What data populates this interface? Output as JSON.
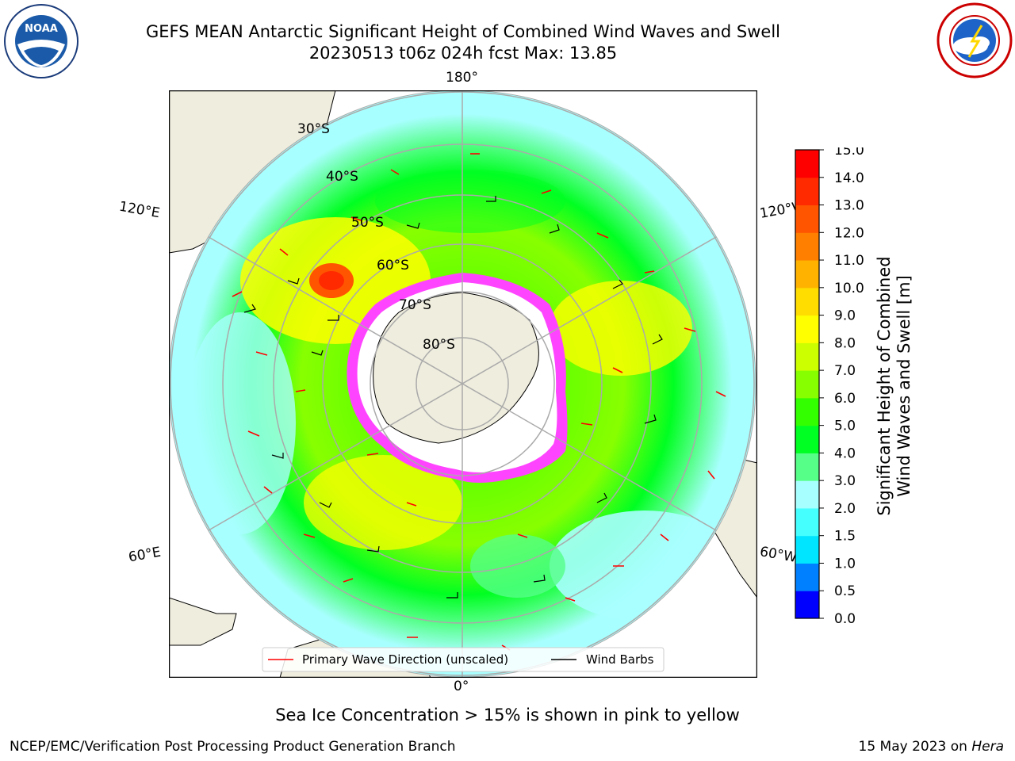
{
  "header": {
    "title_line1": "GEFS MEAN Antarctic Significant Height of Combined Wind Waves and Swell",
    "title_line2": "20230513 t06z 024h fcst   Max: 13.85"
  },
  "logos": {
    "left": {
      "text": "NOAA",
      "ring_text": "NATIONAL OCEANIC AND ATMOSPHERIC ADMINISTRATION · U.S. DEPARTMENT OF COMMERCE"
    },
    "right": {
      "ring_text": "NATIONAL WEATHER SERVICE"
    }
  },
  "map": {
    "projection": "south polar stereographic",
    "longitude_labels": {
      "top": "180°",
      "bottom": "0°",
      "upper_left": "120°E",
      "upper_right": "120°W",
      "lower_left": "60°E",
      "lower_right": "60°W"
    },
    "latitude_labels": [
      "30°S",
      "40°S",
      "50°S",
      "60°S",
      "70°S",
      "80°S"
    ],
    "legend": {
      "primary_wave": "Primary Wave Direction (unscaled)",
      "wind_barbs": "Wind Barbs"
    }
  },
  "colorbar": {
    "label_line1": "Significant Height of Combined",
    "label_line2": "Wind Waves and Swell [m]",
    "ticks": [
      "0.0",
      "0.5",
      "1.0",
      "1.5",
      "2.0",
      "3.0",
      "4.0",
      "5.0",
      "6.0",
      "7.0",
      "8.0",
      "9.0",
      "10.0",
      "11.0",
      "12.0",
      "13.0",
      "14.0",
      "15.0"
    ],
    "colors": [
      "#0000ff",
      "#0080ff",
      "#00e5ff",
      "#45ffff",
      "#a8ffff",
      "#55ff88",
      "#00ff22",
      "#33ff00",
      "#88ff00",
      "#ccff00",
      "#ffff00",
      "#ffdd00",
      "#ffb300",
      "#ff8000",
      "#ff5500",
      "#ff2a00",
      "#ff0000"
    ]
  },
  "caption": "Sea Ice Concentration > 15% is shown in pink to yellow",
  "footer": {
    "left": "NCEP/EMC/Verification Post Processing Product Generation Branch",
    "right_date": "15 May 2023 on",
    "right_host": "Hera"
  }
}
